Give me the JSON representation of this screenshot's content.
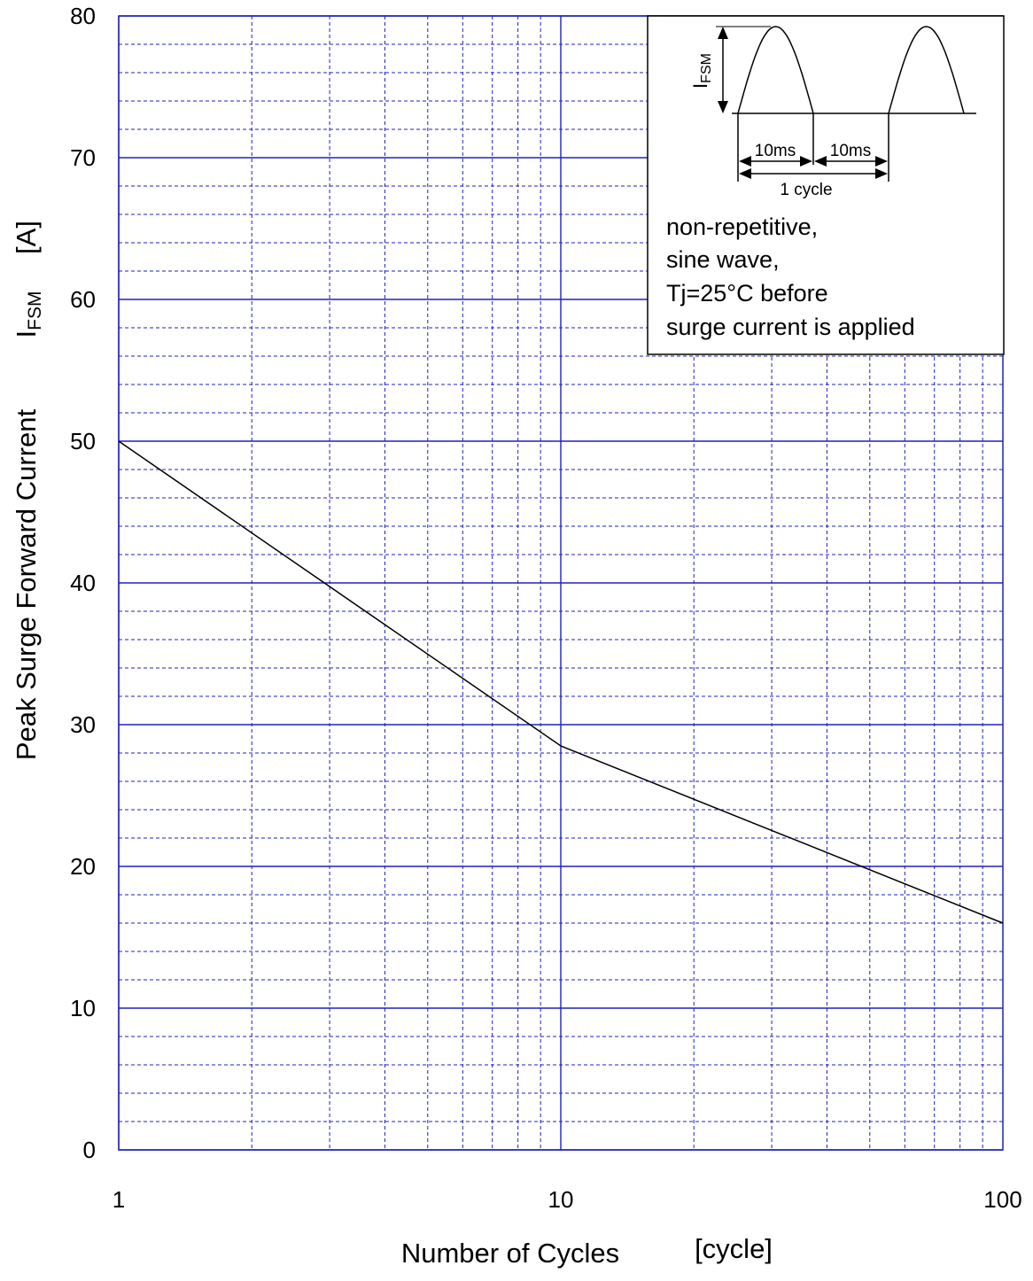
{
  "chart_data": {
    "type": "line",
    "xlabel": "Number of Cycles",
    "xlabel_unit": "[cycle]",
    "ylabel": "Peak Surge Forward Current",
    "ylabel_symbol_main": "I",
    "ylabel_symbol_sub": "FSM",
    "ylabel_unit": "[A]",
    "x_scale": "log",
    "xlim": [
      1,
      100
    ],
    "ylim": [
      0,
      80
    ],
    "x_ticks": [
      "1",
      "10",
      "100"
    ],
    "y_ticks": [
      "0",
      "10",
      "20",
      "30",
      "40",
      "50",
      "60",
      "70",
      "80"
    ],
    "grid": true,
    "series": [
      {
        "x": [
          1,
          10,
          100
        ],
        "y": [
          50,
          28.5,
          16
        ]
      }
    ],
    "inset": {
      "waveform_label_main": "I",
      "waveform_label_sub": "FSM",
      "half_period_label_1": "10ms",
      "half_period_label_2": "10ms",
      "cycle_label": "1 cycle",
      "notes": [
        "non-repetitive,",
        "sine wave,",
        "Tj=25°C before",
        "surge current is applied"
      ]
    },
    "colors": {
      "grid": "#2020c0",
      "frame": "#2020c0",
      "line": "#000000",
      "text": "#000000"
    }
  }
}
